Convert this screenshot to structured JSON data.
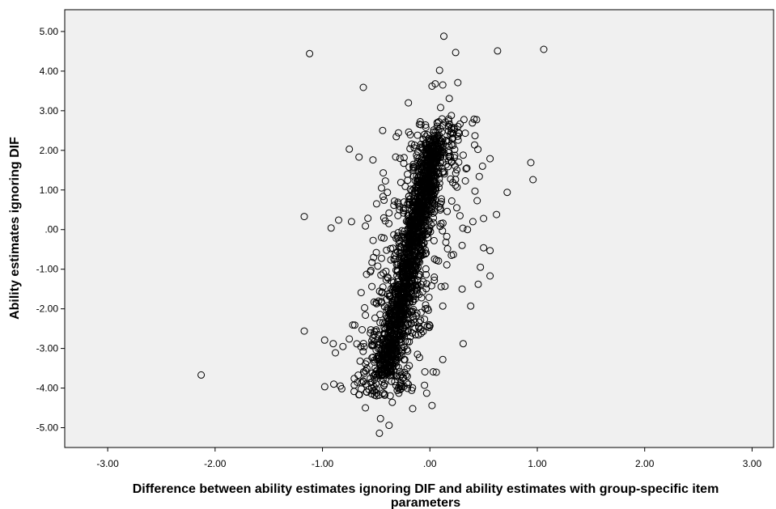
{
  "chart_data": {
    "type": "scatter",
    "title": "",
    "xlabel_line1": "Difference between ability estimates ignoring DIF and ability estimates with group-specific item",
    "xlabel_line2": "parameters",
    "ylabel": "Ability estimates ignoring DIF",
    "xlim": [
      -3.4,
      3.2
    ],
    "ylim": [
      -5.5,
      5.55
    ],
    "xticks": [
      -3,
      -2,
      -1,
      0,
      1,
      2,
      3
    ],
    "xtick_labels": [
      "-3.00",
      "-2.00",
      "-1.00",
      ".00",
      "1.00",
      "2.00",
      "3.00"
    ],
    "yticks": [
      5,
      4,
      3,
      2,
      1,
      0,
      -1,
      -2,
      -3,
      -4,
      -5
    ],
    "ytick_labels": [
      "5.00",
      "4.00",
      "3.00",
      "2.00",
      "1.00",
      ".00",
      "-1.00",
      "-2.00",
      "-3.00",
      "-4.00",
      "-5.00"
    ],
    "grid": false,
    "marker": "open-circle",
    "colors": {
      "plot_background": "#f0f0f0",
      "marker_stroke": "#000000",
      "frame": "#000000"
    },
    "points": [
      [
        0.13,
        4.88
      ],
      [
        -1.12,
        4.44
      ],
      [
        0.24,
        4.47
      ],
      [
        0.63,
        4.51
      ],
      [
        1.06,
        4.55
      ],
      [
        0.09,
        4.02
      ],
      [
        -0.62,
        3.59
      ],
      [
        0.05,
        3.68
      ],
      [
        0.26,
        3.71
      ],
      [
        0.12,
        3.65
      ],
      [
        0.02,
        3.62
      ],
      [
        -0.2,
        3.2
      ],
      [
        0.18,
        3.31
      ],
      [
        0.1,
        3.08
      ],
      [
        0.2,
        2.88
      ],
      [
        -0.44,
        2.5
      ],
      [
        0.42,
        2.37
      ],
      [
        -0.75,
        2.03
      ],
      [
        -0.66,
        1.83
      ],
      [
        -0.53,
        1.76
      ],
      [
        -0.17,
        2.16
      ],
      [
        0.56,
        1.79
      ],
      [
        0.94,
        1.69
      ],
      [
        0.96,
        1.26
      ],
      [
        0.72,
        0.94
      ],
      [
        0.62,
        0.38
      ],
      [
        0.5,
        0.28
      ],
      [
        0.56,
        -0.53
      ],
      [
        0.56,
        -1.17
      ],
      [
        0.38,
        -1.93
      ],
      [
        0.45,
        -1.38
      ],
      [
        0.3,
        -1.5
      ],
      [
        0.31,
        -2.88
      ],
      [
        -1.17,
        0.33
      ],
      [
        -0.85,
        0.24
      ],
      [
        -0.92,
        0.04
      ],
      [
        -0.73,
        0.2
      ],
      [
        -0.6,
        0.09
      ],
      [
        -2.13,
        -3.67
      ],
      [
        -1.17,
        -2.56
      ],
      [
        -0.98,
        -2.79
      ],
      [
        -0.9,
        -2.88
      ],
      [
        -0.88,
        -3.11
      ],
      [
        -0.81,
        -2.95
      ],
      [
        -0.75,
        -2.76
      ],
      [
        -0.7,
        -2.41
      ],
      [
        -0.64,
        -1.59
      ],
      [
        -0.59,
        -1.13
      ],
      [
        -0.55,
        -1.03
      ],
      [
        -0.6,
        -2.16
      ],
      [
        -0.55,
        -2.53
      ],
      [
        -0.65,
        -3.32
      ],
      [
        -0.6,
        -4.5
      ],
      [
        -0.55,
        -3.86
      ],
      [
        -0.46,
        -4.77
      ],
      [
        -0.47,
        -5.14
      ],
      [
        -0.5,
        -5.43
      ],
      [
        -0.38,
        -4.94
      ],
      [
        -0.42,
        -4.18
      ],
      [
        -0.35,
        -4.36
      ],
      [
        -0.16,
        -4.52
      ],
      [
        0.02,
        -4.44
      ],
      [
        0.03,
        -3.59
      ],
      [
        -0.05,
        -3.93
      ],
      [
        0.0,
        -2.43
      ],
      [
        -0.04,
        -1.9
      ],
      [
        0.14,
        -1.43
      ],
      [
        0.12,
        -1.93
      ],
      [
        0.08,
        -0.79
      ],
      [
        0.2,
        -0.65
      ],
      [
        0.3,
        -0.4
      ],
      [
        0.35,
        0.0
      ],
      [
        0.28,
        0.35
      ],
      [
        0.25,
        0.55
      ],
      [
        0.4,
        0.2
      ],
      [
        0.44,
        0.73
      ],
      [
        0.33,
        1.23
      ],
      [
        0.42,
        0.97
      ],
      [
        0.31,
        1.88
      ],
      [
        0.17,
        1.59
      ],
      [
        0.06,
        2.3
      ],
      [
        0.12,
        2.63
      ],
      [
        -0.05,
        2.4
      ],
      [
        -0.45,
        1.05
      ],
      [
        -0.45,
        -0.2
      ],
      [
        -0.38,
        0.42
      ],
      [
        -0.33,
        0.72
      ],
      [
        -0.27,
        1.19
      ],
      [
        -0.52,
        -1.83
      ],
      [
        -0.48,
        -2.65
      ],
      [
        -0.45,
        -3.47
      ],
      [
        0.12,
        -3.28
      ],
      [
        0.06,
        -3.6
      ],
      [
        -0.03,
        -4.13
      ],
      [
        0.47,
        -0.95
      ],
      [
        0.5,
        -0.46
      ],
      [
        0.46,
        1.34
      ],
      [
        0.49,
        1.6
      ],
      [
        -0.15,
        1.58
      ],
      [
        -0.08,
        1.2
      ],
      [
        -0.02,
        1.76
      ],
      [
        0.05,
        1.92
      ],
      [
        -0.3,
        -2.4
      ],
      [
        -0.28,
        -3.2
      ],
      [
        -0.18,
        -2.7
      ]
    ],
    "core_cloud": {
      "n": 1200,
      "slope": 0.08,
      "intercept": -0.13,
      "y_range": [
        -3.7,
        2.3
      ],
      "spread": 0.055
    },
    "halo_cloud": {
      "n": 650,
      "y_range": [
        -4.2,
        2.8
      ],
      "spread": 0.16
    }
  }
}
